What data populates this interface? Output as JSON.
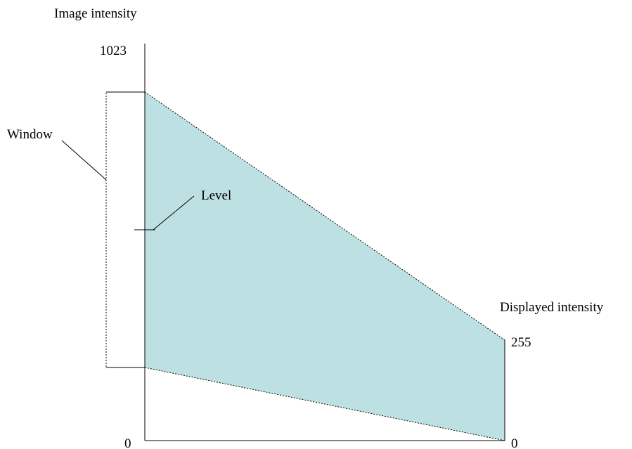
{
  "labels": {
    "image_axis_title": "Image intensity",
    "image_axis_max": "1023",
    "image_axis_min": "0",
    "displayed_axis_title": "Displayed intensity",
    "displayed_axis_max": "255",
    "displayed_axis_min": "0",
    "window": "Window",
    "level": "Level"
  },
  "colors": {
    "mapping_fill": "#bde0e3",
    "lines": "#000000"
  }
}
